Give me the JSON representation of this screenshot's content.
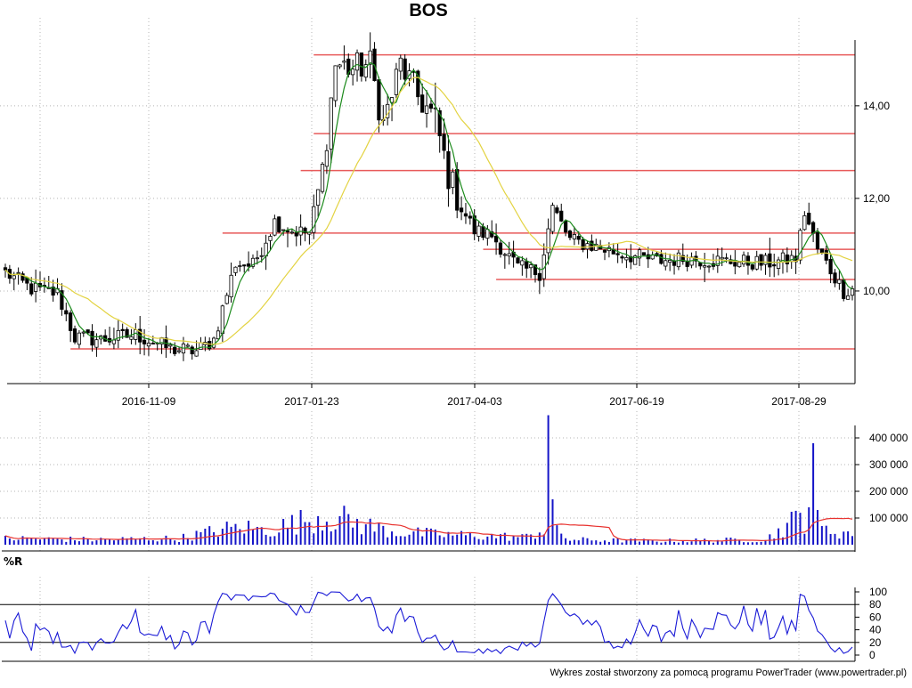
{
  "chart_data": [
    {
      "panel": "price",
      "type": "candlestick",
      "title": "BOS",
      "x_ticks": [
        "2016-11-09",
        "2017-01-23",
        "2017-04-03",
        "2017-06-19",
        "2017-08-29"
      ],
      "y_ticks": [
        "10,00",
        "12,00",
        "14,00"
      ],
      "ylim": [
        8.0,
        15.9
      ],
      "grid": true,
      "horizontal_levels": [
        {
          "value": 15.1,
          "from_index": 71
        },
        {
          "value": 13.4,
          "from_index": 71
        },
        {
          "value": 12.6,
          "from_index": 68
        },
        {
          "value": 11.25,
          "from_index": 50
        },
        {
          "value": 10.9,
          "from_index": 110
        },
        {
          "value": 10.25,
          "from_index": 113
        },
        {
          "value": 8.75,
          "from_index": 15
        }
      ],
      "close_keypoints": [
        [
          0,
          10.4
        ],
        [
          6,
          10.05
        ],
        [
          12,
          9.95
        ],
        [
          16,
          9.0
        ],
        [
          22,
          8.95
        ],
        [
          30,
          9.05
        ],
        [
          34,
          8.9
        ],
        [
          38,
          8.75
        ],
        [
          44,
          8.7
        ],
        [
          48,
          8.95
        ],
        [
          53,
          10.6
        ],
        [
          57,
          10.55
        ],
        [
          62,
          11.5
        ],
        [
          66,
          11.3
        ],
        [
          70,
          11.25
        ],
        [
          73,
          12.6
        ],
        [
          76,
          14.9
        ],
        [
          80,
          14.8
        ],
        [
          84,
          14.9
        ],
        [
          87,
          13.6
        ],
        [
          91,
          14.9
        ],
        [
          95,
          14.2
        ],
        [
          99,
          13.7
        ],
        [
          102,
          12.5
        ],
        [
          105,
          11.8
        ],
        [
          108,
          11.3
        ],
        [
          112,
          11.2
        ],
        [
          118,
          10.5
        ],
        [
          123,
          10.4
        ],
        [
          126,
          11.8
        ],
        [
          130,
          11.1
        ],
        [
          136,
          10.95
        ],
        [
          142,
          10.8
        ],
        [
          150,
          10.65
        ],
        [
          157,
          10.7
        ],
        [
          165,
          10.65
        ],
        [
          175,
          10.6
        ],
        [
          182,
          10.7
        ],
        [
          184,
          11.7
        ],
        [
          187,
          10.9
        ],
        [
          190,
          10.45
        ],
        [
          193,
          10.0
        ],
        [
          195,
          10.05
        ]
      ],
      "moving_averages": [
        {
          "name": "",
          "period": 5,
          "color": "#1b8a1b"
        },
        {
          "name": "",
          "period": 20,
          "color": "#e3d342"
        }
      ]
    },
    {
      "panel": "volume",
      "type": "bar",
      "y_ticks": [
        "100 000",
        "200 000",
        "300 000",
        "400 000"
      ],
      "ylim": [
        0,
        500000
      ],
      "volume_keypoints": [
        [
          0,
          25000
        ],
        [
          20,
          20000
        ],
        [
          40,
          25000
        ],
        [
          50,
          60000
        ],
        [
          55,
          70000
        ],
        [
          60,
          55000
        ],
        [
          72,
          110000
        ],
        [
          78,
          100000
        ],
        [
          82,
          80000
        ],
        [
          90,
          50000
        ],
        [
          100,
          40000
        ],
        [
          110,
          35000
        ],
        [
          120,
          30000
        ],
        [
          125,
          70000
        ],
        [
          130,
          20000
        ],
        [
          150,
          15000
        ],
        [
          175,
          20000
        ],
        [
          183,
          110000
        ],
        [
          188,
          60000
        ],
        [
          195,
          45000
        ]
      ],
      "volume_spikes": [
        {
          "index": 125,
          "value": 485000
        },
        {
          "index": 126,
          "value": 170000
        },
        {
          "index": 186,
          "value": 380000
        },
        {
          "index": 185,
          "value": 140000
        },
        {
          "index": 187,
          "value": 130000
        }
      ],
      "average_line": {
        "name": "",
        "color": "#e8322f"
      }
    },
    {
      "panel": "oscillator",
      "type": "line",
      "label": "%R",
      "y_ticks": [
        "0",
        "20",
        "40",
        "60",
        "80",
        "100"
      ],
      "ylim": [
        0,
        100
      ],
      "reference_levels": [
        20,
        80
      ],
      "series_color": "#1a1ad6",
      "range": {
        "min": 0,
        "max": 100
      }
    }
  ],
  "footer": {
    "text": "Wykres został stworzony za pomocą programu PowerTrader (www.powertrader.pl)"
  },
  "colors": {
    "level_line": "#e85a5a",
    "bull_candle": "#ffffff",
    "bear_candle": "#000000",
    "volume_bar": "#1414c8",
    "grid": "#b4b4b4"
  }
}
